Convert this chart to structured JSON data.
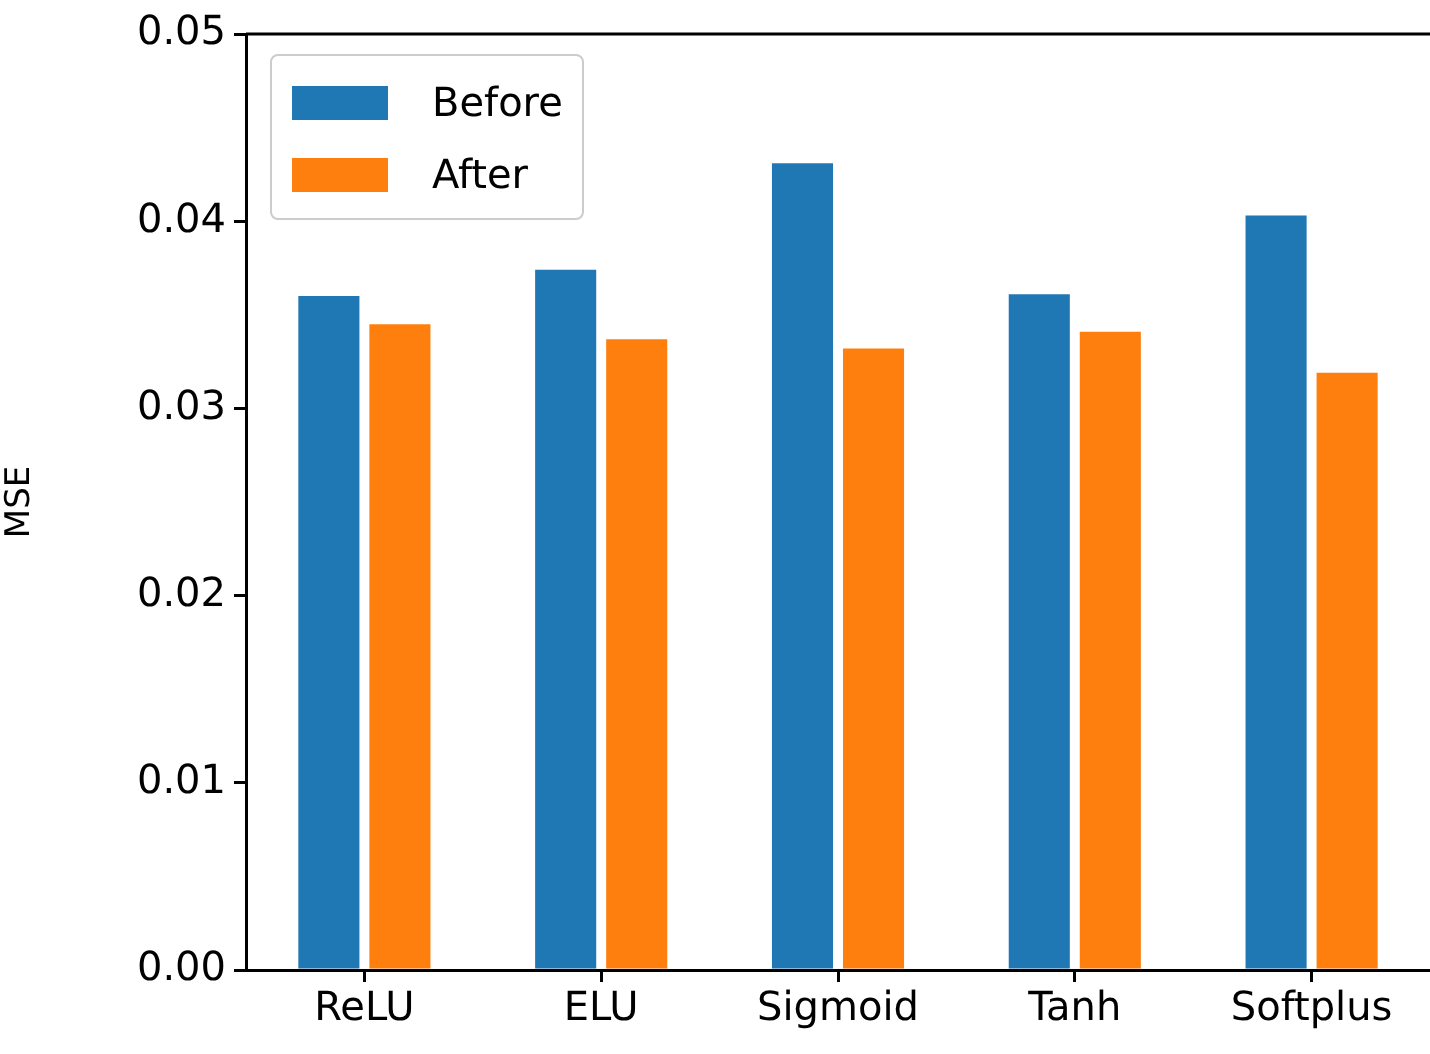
{
  "chart_data": {
    "type": "bar",
    "ylabel": "MSE",
    "categories": [
      "ReLU",
      "ELU",
      "Sigmoid",
      "Tanh",
      "Softplus"
    ],
    "series": [
      {
        "name": "Before",
        "color": "#1f77b4",
        "values": [
          0.036,
          0.0374,
          0.0431,
          0.0361,
          0.0403
        ]
      },
      {
        "name": "After",
        "color": "#ff7f0e",
        "values": [
          0.0345,
          0.0337,
          0.0332,
          0.0341,
          0.0319
        ]
      }
    ],
    "ylim": [
      0,
      0.05
    ],
    "yticks": [
      {
        "value": 0,
        "label": "0.00"
      },
      {
        "value": 0.01,
        "label": "0.01"
      },
      {
        "value": 0.02,
        "label": "0.02"
      },
      {
        "value": 0.03,
        "label": "0.03"
      },
      {
        "value": 0.04,
        "label": "0.04"
      },
      {
        "value": 0.05,
        "label": "0.05"
      }
    ],
    "grid": false,
    "legend": "top left"
  }
}
